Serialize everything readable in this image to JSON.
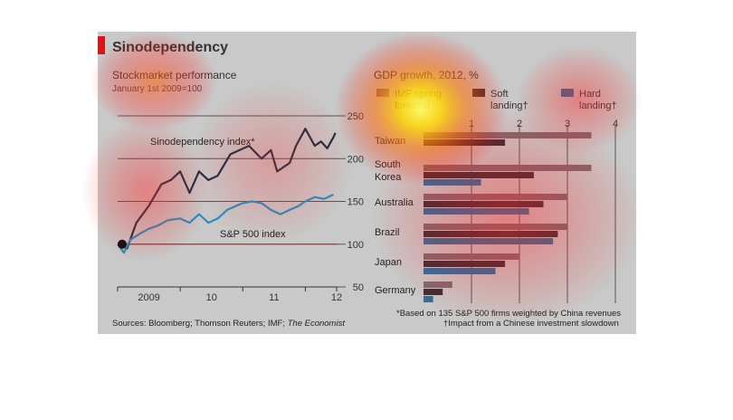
{
  "header": {
    "title": "Sinodependency"
  },
  "left_panel": {
    "subtitle": "Stockmarket performance",
    "note": "January 1st 2009=100",
    "sources_prefix": "Sources: Bloomberg; Thomson Reuters; IMF; ",
    "sources_italic": "The Economist"
  },
  "right_panel": {
    "subtitle": "GDP growth, 2012, %",
    "footnote_1": "*Based on 135 S&P 500 firms weighted by China revenues",
    "footnote_2": "†Impact from a Chinese investment slowdown"
  },
  "colors": {
    "background": "#c9c9c9",
    "accent_red": "#d4181c",
    "sino_line": "#163347",
    "sp500_line": "#2b8fbd",
    "imf_bar": "#7f6a70",
    "soft_bar": "#3b2f37",
    "hard_bar": "#2f6f9b"
  },
  "chart_data": [
    {
      "type": "line",
      "title": "Stockmarket performance",
      "subtitle": "January 1st 2009=100",
      "x_ticks": [
        "2009",
        "10",
        "11",
        "12"
      ],
      "y_ticks": [
        50,
        100,
        150,
        200,
        250
      ],
      "ylim": [
        50,
        250
      ],
      "xlim": [
        2009.0,
        2012.5
      ],
      "baseline": 100,
      "grid": true,
      "series": [
        {
          "name": "Sinodependency index*",
          "x": [
            2009.0,
            2009.15,
            2009.3,
            2009.5,
            2009.7,
            2009.85,
            2010.0,
            2010.15,
            2010.3,
            2010.45,
            2010.6,
            2010.8,
            2010.95,
            2011.1,
            2011.3,
            2011.45,
            2011.55,
            2011.65,
            2011.75,
            2011.85,
            2012.0,
            2012.15,
            2012.25,
            2012.35,
            2012.45,
            2012.48
          ],
          "values": [
            100,
            95,
            125,
            145,
            170,
            175,
            185,
            160,
            185,
            175,
            180,
            205,
            210,
            215,
            200,
            210,
            185,
            190,
            195,
            215,
            235,
            215,
            220,
            212,
            225,
            230
          ]
        },
        {
          "name": "S&P 500 index",
          "x": [
            2009.0,
            2009.1,
            2009.2,
            2009.35,
            2009.5,
            2009.65,
            2009.8,
            2010.0,
            2010.15,
            2010.3,
            2010.45,
            2010.6,
            2010.75,
            2010.9,
            2011.0,
            2011.15,
            2011.3,
            2011.45,
            2011.6,
            2011.75,
            2011.9,
            2012.0,
            2012.15,
            2012.3,
            2012.45
          ],
          "values": [
            100,
            90,
            105,
            112,
            118,
            122,
            128,
            130,
            125,
            135,
            125,
            130,
            140,
            145,
            148,
            150,
            148,
            140,
            135,
            140,
            145,
            150,
            155,
            153,
            158
          ]
        }
      ]
    },
    {
      "type": "bar",
      "orientation": "horizontal",
      "title": "GDP growth, 2012, %",
      "categories": [
        "Taiwan",
        "South Korea",
        "Australia",
        "Brazil",
        "Japan",
        "Germany"
      ],
      "xlim": [
        0,
        4
      ],
      "x_ticks": [
        1,
        2,
        3,
        4
      ],
      "grid": true,
      "legend_position": "top",
      "series": [
        {
          "name": "IMF spring forecast",
          "values": [
            3.5,
            3.5,
            3.0,
            3.0,
            2.0,
            0.6
          ]
        },
        {
          "name": "Soft landing†",
          "values": [
            1.7,
            2.3,
            2.5,
            2.8,
            1.7,
            0.4
          ]
        },
        {
          "name": "Hard landing†",
          "values": [
            null,
            1.2,
            2.2,
            2.7,
            1.5,
            0.2
          ]
        }
      ]
    }
  ]
}
